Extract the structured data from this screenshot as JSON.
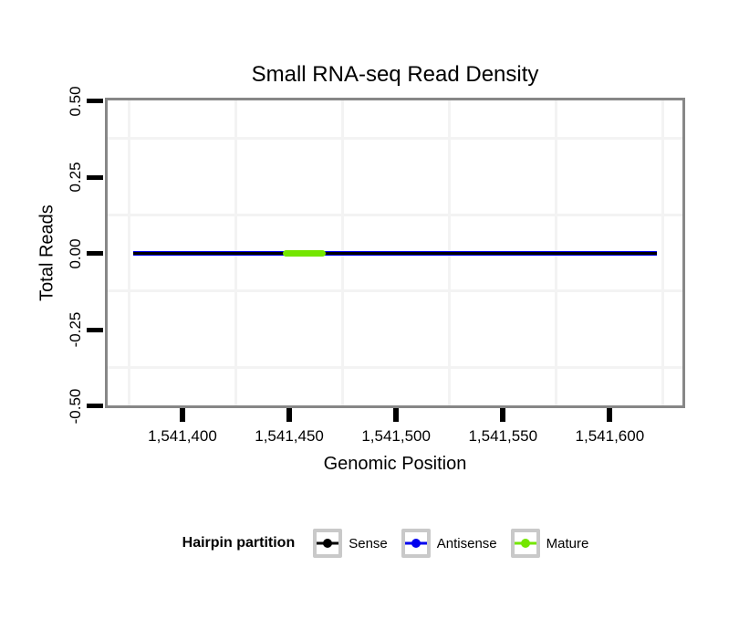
{
  "title": "Small RNA-seq Read Density",
  "legend": {
    "title": "Hairpin partition",
    "items": [
      {
        "label": "Sense",
        "color": "#000000"
      },
      {
        "label": "Antisense",
        "color": "#0000EE"
      },
      {
        "label": "Mature",
        "color": "#74E600"
      }
    ]
  },
  "colors": {
    "panel_border": "#878787",
    "gridline": "#F3F3F3",
    "tick": "#000000",
    "legend_key_border": "#C9C9C9"
  },
  "chart_data": {
    "type": "line",
    "title": "Small RNA-seq Read Density",
    "xlabel": "Genomic Position",
    "ylabel": "Total Reads",
    "xlim": [
      1541365,
      1541634
    ],
    "ylim": [
      -0.5,
      0.5
    ],
    "grid": "minor-gridlines-only",
    "legend_position": "bottom",
    "x_ticks": [
      {
        "value": 1541400,
        "label": "1,541,400"
      },
      {
        "value": 1541450,
        "label": "1,541,450"
      },
      {
        "value": 1541500,
        "label": "1,541,500"
      },
      {
        "value": 1541550,
        "label": "1,541,550"
      },
      {
        "value": 1541600,
        "label": "1,541,600"
      }
    ],
    "y_ticks": [
      {
        "value": 0.5,
        "label": "0.50"
      },
      {
        "value": 0.25,
        "label": "0.25"
      },
      {
        "value": 0.0,
        "label": "0.00"
      },
      {
        "value": -0.25,
        "label": "-0.25"
      },
      {
        "value": -0.5,
        "label": "-0.50"
      }
    ],
    "x_minor_gridlines": [
      1541375,
      1541425,
      1541475,
      1541525,
      1541575,
      1541625
    ],
    "y_minor_gridlines": [
      0.375,
      0.125,
      -0.125,
      -0.375
    ],
    "series": [
      {
        "name": "Antisense",
        "color": "#0000EE",
        "x": [
          1541377,
          1541622
        ],
        "y": [
          0,
          0
        ],
        "line_width": 5,
        "rounded": false
      },
      {
        "name": "Sense",
        "color": "#000000",
        "x": [
          1541377,
          1541622
        ],
        "y": [
          0,
          0
        ],
        "line_width": 3,
        "rounded": false
      },
      {
        "name": "Mature",
        "color": "#74E600",
        "x": [
          1541447,
          1541467
        ],
        "y": [
          0,
          0
        ],
        "line_width": 7,
        "rounded": true
      }
    ]
  }
}
